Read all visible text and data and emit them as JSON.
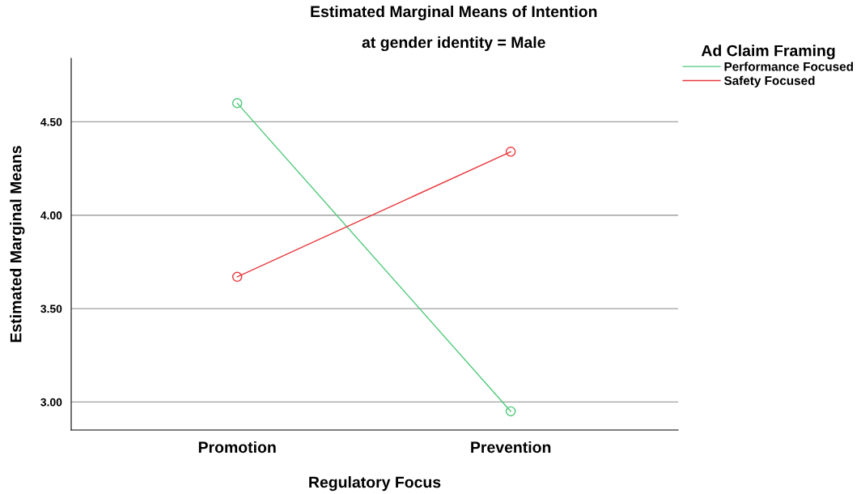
{
  "chart_data": {
    "type": "line",
    "title": "Estimated Marginal Means of Intention",
    "subtitle": "at gender identity = Male",
    "xlabel": "Regulatory Focus",
    "ylabel": "Estimated Marginal Means",
    "legend_title": "Ad Claim Framing",
    "categories": [
      "Promotion",
      "Prevention"
    ],
    "series": [
      {
        "name": "Performance Focused",
        "color": "#4fc97a",
        "values": [
          4.6,
          2.95
        ]
      },
      {
        "name": "Safety Focused",
        "color": "#e8383d",
        "values": [
          3.67,
          4.34
        ]
      }
    ],
    "ylim": [
      2.85,
      4.84
    ],
    "yticks": [
      {
        "value": 3.0,
        "label": "3.00"
      },
      {
        "value": 3.5,
        "label": "3.50"
      },
      {
        "value": 4.0,
        "label": "4.00"
      },
      {
        "value": 4.5,
        "label": "4.50"
      }
    ],
    "grid": "y",
    "legend": "top right",
    "marker": "circle",
    "line_style": "solid"
  }
}
